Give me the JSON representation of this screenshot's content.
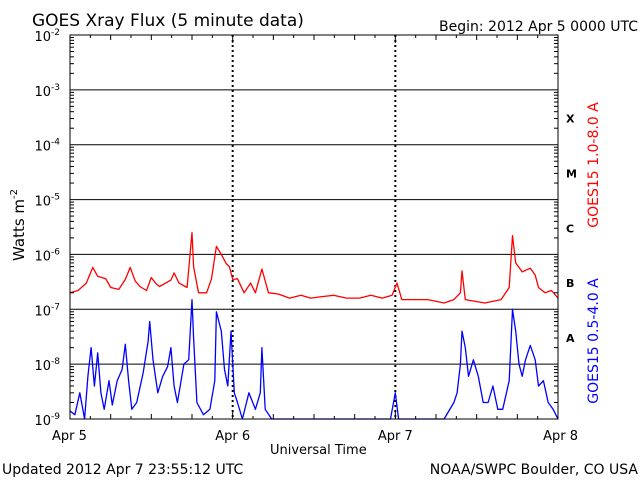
{
  "chart_data": {
    "type": "line",
    "title": "GOES Xray Flux (5 minute data)",
    "begin_text": "Begin:  2012 Apr 5 0000 UTC",
    "updated_text": "Updated 2012 Apr  7 23:55:12 UTC",
    "credit_text": "NOAA/SWPC Boulder, CO USA",
    "xlabel": "Universal Time",
    "ylabel": "Watts m",
    "ylabel_exponent": "-2",
    "x_range_days": [
      0,
      3
    ],
    "x_ticks": [
      {
        "day": 0,
        "label": "Apr 5"
      },
      {
        "day": 1,
        "label": "Apr 6"
      },
      {
        "day": 2,
        "label": "Apr 7"
      },
      {
        "day": 3,
        "label": "Apr 8"
      }
    ],
    "y_scale": "log",
    "y_range": [
      1e-09,
      0.01
    ],
    "y_ticks": [
      {
        "base": "10",
        "exp": "-9",
        "value": 1e-09
      },
      {
        "base": "10",
        "exp": "-8",
        "value": 1e-08
      },
      {
        "base": "10",
        "exp": "-7",
        "value": 1e-07
      },
      {
        "base": "10",
        "exp": "-6",
        "value": 1e-06
      },
      {
        "base": "10",
        "exp": "-5",
        "value": 1e-05
      },
      {
        "base": "10",
        "exp": "-4",
        "value": 0.0001
      },
      {
        "base": "10",
        "exp": "-3",
        "value": 0.001
      },
      {
        "base": "10",
        "exp": "-2",
        "value": 0.01
      }
    ],
    "flare_classes": [
      {
        "label": "X",
        "value": 0.0003
      },
      {
        "label": "M",
        "value": 3e-05
      },
      {
        "label": "C",
        "value": 3e-06
      },
      {
        "label": "B",
        "value": 3e-07
      },
      {
        "label": "A",
        "value": 3e-08
      }
    ],
    "grid": "horizontal lines at each decade; dotted vertical lines at day boundaries",
    "legend": "right side, vertical",
    "series": [
      {
        "name": "GOES15 1.0-8.0 A",
        "color": "#ff0000",
        "points": [
          [
            0.0,
            2e-07
          ],
          [
            0.05,
            2.2e-07
          ],
          [
            0.1,
            3e-07
          ],
          [
            0.14,
            5.8e-07
          ],
          [
            0.17,
            4e-07
          ],
          [
            0.22,
            3.6e-07
          ],
          [
            0.25,
            2.5e-07
          ],
          [
            0.3,
            2.3e-07
          ],
          [
            0.34,
            3.5e-07
          ],
          [
            0.37,
            5.8e-07
          ],
          [
            0.4,
            3.3e-07
          ],
          [
            0.43,
            2.6e-07
          ],
          [
            0.47,
            2.2e-07
          ],
          [
            0.5,
            3.8e-07
          ],
          [
            0.53,
            2.9e-07
          ],
          [
            0.55,
            2.6e-07
          ],
          [
            0.62,
            3.4e-07
          ],
          [
            0.64,
            4.6e-07
          ],
          [
            0.67,
            3e-07
          ],
          [
            0.72,
            2.5e-07
          ],
          [
            0.75,
            2.5e-06
          ],
          [
            0.76,
            6e-07
          ],
          [
            0.79,
            2e-07
          ],
          [
            0.84,
            2e-07
          ],
          [
            0.87,
            3.6e-07
          ],
          [
            0.9,
            1.4e-06
          ],
          [
            0.93,
            1e-06
          ],
          [
            0.96,
            6.8e-07
          ],
          [
            0.98,
            6e-07
          ],
          [
            1.0,
            3.5e-07
          ],
          [
            1.03,
            3.6e-07
          ],
          [
            1.07,
            2e-07
          ],
          [
            1.11,
            3e-07
          ],
          [
            1.14,
            2e-07
          ],
          [
            1.18,
            5.4e-07
          ],
          [
            1.22,
            2e-07
          ],
          [
            1.28,
            1.9e-07
          ],
          [
            1.35,
            1.6e-07
          ],
          [
            1.42,
            1.8e-07
          ],
          [
            1.48,
            1.6e-07
          ],
          [
            1.55,
            1.7e-07
          ],
          [
            1.62,
            1.8e-07
          ],
          [
            1.7,
            1.6e-07
          ],
          [
            1.78,
            1.6e-07
          ],
          [
            1.85,
            1.8e-07
          ],
          [
            1.92,
            1.6e-07
          ],
          [
            1.98,
            1.8e-07
          ],
          [
            2.01,
            3e-07
          ],
          [
            2.04,
            1.5e-07
          ],
          [
            2.1,
            1.5e-07
          ],
          [
            2.2,
            1.5e-07
          ],
          [
            2.3,
            1.3e-07
          ],
          [
            2.36,
            1.5e-07
          ],
          [
            2.4,
            2e-07
          ],
          [
            2.41,
            5e-07
          ],
          [
            2.43,
            1.5e-07
          ],
          [
            2.55,
            1.3e-07
          ],
          [
            2.65,
            1.5e-07
          ],
          [
            2.7,
            2.5e-07
          ],
          [
            2.72,
            2.2e-06
          ],
          [
            2.74,
            7e-07
          ],
          [
            2.78,
            4.8e-07
          ],
          [
            2.83,
            5.6e-07
          ],
          [
            2.86,
            4.2e-07
          ],
          [
            2.88,
            2.5e-07
          ],
          [
            2.92,
            2e-07
          ],
          [
            2.96,
            2.2e-07
          ],
          [
            3.0,
            1.6e-07
          ]
        ]
      },
      {
        "name": "GOES15 0.5-4.0 A",
        "color": "#0000ff",
        "points": [
          [
            0.0,
            1.4e-09
          ],
          [
            0.03,
            1.2e-09
          ],
          [
            0.06,
            3e-09
          ],
          [
            0.09,
            1e-09
          ],
          [
            0.11,
            6e-09
          ],
          [
            0.13,
            2e-08
          ],
          [
            0.15,
            4e-09
          ],
          [
            0.17,
            1.6e-08
          ],
          [
            0.19,
            3e-09
          ],
          [
            0.21,
            1.5e-09
          ],
          [
            0.24,
            5e-09
          ],
          [
            0.26,
            1.8e-09
          ],
          [
            0.29,
            5e-09
          ],
          [
            0.32,
            8e-09
          ],
          [
            0.34,
            2.3e-08
          ],
          [
            0.36,
            5e-09
          ],
          [
            0.38,
            1.5e-09
          ],
          [
            0.41,
            2e-09
          ],
          [
            0.45,
            7e-09
          ],
          [
            0.48,
            2.6e-08
          ],
          [
            0.49,
            6e-08
          ],
          [
            0.51,
            1.2e-08
          ],
          [
            0.54,
            3e-09
          ],
          [
            0.57,
            6e-09
          ],
          [
            0.6,
            9e-09
          ],
          [
            0.62,
            2e-08
          ],
          [
            0.64,
            4e-09
          ],
          [
            0.66,
            2e-09
          ],
          [
            0.7,
            1e-08
          ],
          [
            0.73,
            1.2e-08
          ],
          [
            0.75,
            1.5e-07
          ],
          [
            0.76,
            3e-08
          ],
          [
            0.78,
            2e-09
          ],
          [
            0.82,
            1.2e-09
          ],
          [
            0.86,
            1.5e-09
          ],
          [
            0.89,
            5e-09
          ],
          [
            0.9,
            9e-08
          ],
          [
            0.93,
            4e-08
          ],
          [
            0.95,
            8e-09
          ],
          [
            0.97,
            4e-09
          ],
          [
            0.99,
            4e-08
          ],
          [
            1.01,
            3e-09
          ],
          [
            1.03,
            2e-09
          ],
          [
            1.06,
            1e-09
          ],
          [
            1.1,
            3e-09
          ],
          [
            1.14,
            1.5e-09
          ],
          [
            1.17,
            3e-09
          ],
          [
            1.18,
            2e-08
          ],
          [
            1.2,
            1.5e-09
          ],
          [
            1.24,
            1e-09
          ],
          [
            1.3,
            1e-09
          ],
          [
            1.38,
            1e-09
          ],
          [
            1.48,
            1e-09
          ],
          [
            1.58,
            1e-09
          ],
          [
            1.68,
            1e-09
          ],
          [
            1.78,
            1e-09
          ],
          [
            1.88,
            1e-09
          ],
          [
            1.97,
            1e-09
          ],
          [
            2.0,
            3e-09
          ],
          [
            2.02,
            1e-09
          ],
          [
            2.1,
            1e-09
          ],
          [
            2.2,
            1e-09
          ],
          [
            2.3,
            1e-09
          ],
          [
            2.36,
            2e-09
          ],
          [
            2.38,
            3e-09
          ],
          [
            2.4,
            1e-08
          ],
          [
            2.41,
            4e-08
          ],
          [
            2.43,
            2e-08
          ],
          [
            2.45,
            6e-09
          ],
          [
            2.48,
            1.2e-08
          ],
          [
            2.51,
            6e-09
          ],
          [
            2.54,
            2e-09
          ],
          [
            2.57,
            2e-09
          ],
          [
            2.6,
            4e-09
          ],
          [
            2.63,
            1.5e-09
          ],
          [
            2.66,
            1.5e-09
          ],
          [
            2.7,
            5e-09
          ],
          [
            2.72,
            1e-07
          ],
          [
            2.74,
            4e-08
          ],
          [
            2.76,
            1e-08
          ],
          [
            2.78,
            6e-09
          ],
          [
            2.8,
            1.2e-08
          ],
          [
            2.83,
            2.2e-08
          ],
          [
            2.86,
            1.2e-08
          ],
          [
            2.88,
            4e-09
          ],
          [
            2.91,
            5e-09
          ],
          [
            2.94,
            2e-09
          ],
          [
            2.97,
            1.5e-09
          ],
          [
            3.0,
            1e-09
          ]
        ]
      }
    ]
  }
}
